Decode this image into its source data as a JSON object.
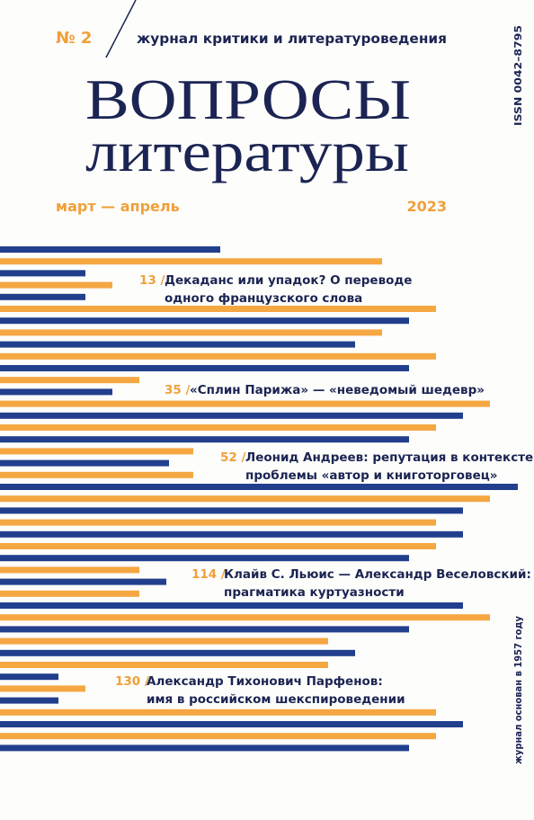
{
  "header": {
    "issue": "№ 2",
    "subtitle": "журнал критики и литературоведения",
    "title_line1": "ВОПРОСЫ",
    "title_line2": "литературы",
    "period": "март — апрель",
    "year": "2023",
    "issn": "ISSN 0042–8795"
  },
  "contents": [
    {
      "page": "13 /",
      "lines": [
        "Декаданс или упадок? О переводе",
        "одного французского слова"
      ]
    },
    {
      "page": "35 /",
      "lines": [
        "«Сплин Парижа» — «неведомый шедевр»"
      ]
    },
    {
      "page": "52 /",
      "lines": [
        "Леонид Андреев: репутация в контексте",
        "проблемы «автор и книготорговец»"
      ]
    },
    {
      "page": "114 /",
      "lines": [
        "Клайв С. Льюис — Александр Веселовский:",
        "прагматика куртуазности"
      ]
    },
    {
      "page": "130 /",
      "lines": [
        "Александр Тихонович Парфенов:",
        "имя в российском шекспироведении"
      ]
    }
  ],
  "spine_note": "журнал основан в 1957 году"
}
